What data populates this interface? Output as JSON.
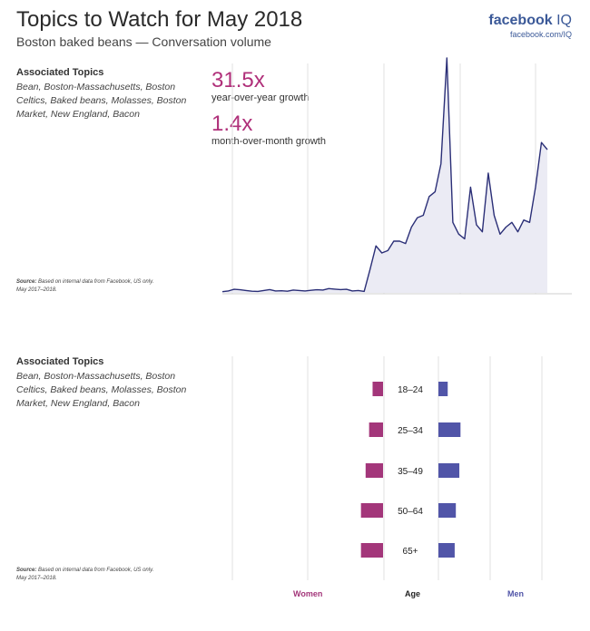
{
  "header": {
    "title": "Topics to Watch for May 2018",
    "subtitle": "Boston baked beans — Conversation volume",
    "brand_bold": "facebook",
    "brand_light": "IQ",
    "brand_url": "facebook.com/IQ"
  },
  "topics": {
    "title": "Associated Topics",
    "body": "Bean, Boston-Massachusetts, Boston Celtics, Baked beans, Molasses, Boston Market, New England, Bacon"
  },
  "source": {
    "label": "Source:",
    "text": "Based on internal data from Facebook, US only.",
    "period": "May 2017–2018."
  },
  "stats": {
    "yoy_value": "31.5x",
    "yoy_label": "year-over-year growth",
    "mom_value": "1.4x",
    "mom_label": "month-over-month growth"
  },
  "colors": {
    "line": "#2b2f77",
    "area": "#ebebf4",
    "women": "#a3367a",
    "men": "#5155a8",
    "grid": "#e2e2e2"
  },
  "chart_data": [
    {
      "type": "area",
      "title": "",
      "xlabel": "",
      "ylabel": "",
      "grid": "vertical",
      "ylim": [
        0,
        100
      ],
      "series": [
        {
          "values": [
            0.5,
            0.8,
            1.5,
            1.3,
            1.0,
            0.7,
            0.6,
            1.0,
            1.4,
            0.8,
            0.9,
            0.7,
            1.2,
            1.0,
            0.8,
            1.1,
            1.3,
            1.2,
            1.8,
            1.6,
            1.4,
            1.5,
            0.8,
            1.0,
            0.6,
            10,
            20,
            17,
            18,
            22,
            22,
            21,
            28,
            32,
            33,
            41,
            43,
            55,
            100,
            30,
            25,
            23,
            45,
            29,
            26,
            51,
            33,
            25,
            28,
            30,
            26,
            31,
            30,
            45,
            64,
            61
          ]
        }
      ]
    },
    {
      "type": "bar",
      "title": "",
      "xlabel": "Age",
      "categories": [
        "18–24",
        "25–34",
        "35–49",
        "50–64",
        "65+"
      ],
      "series": [
        {
          "name": "Women",
          "values": [
            9,
            12,
            15,
            19,
            19
          ]
        },
        {
          "name": "Men",
          "values": [
            8,
            19,
            18,
            15,
            14
          ]
        }
      ]
    }
  ]
}
